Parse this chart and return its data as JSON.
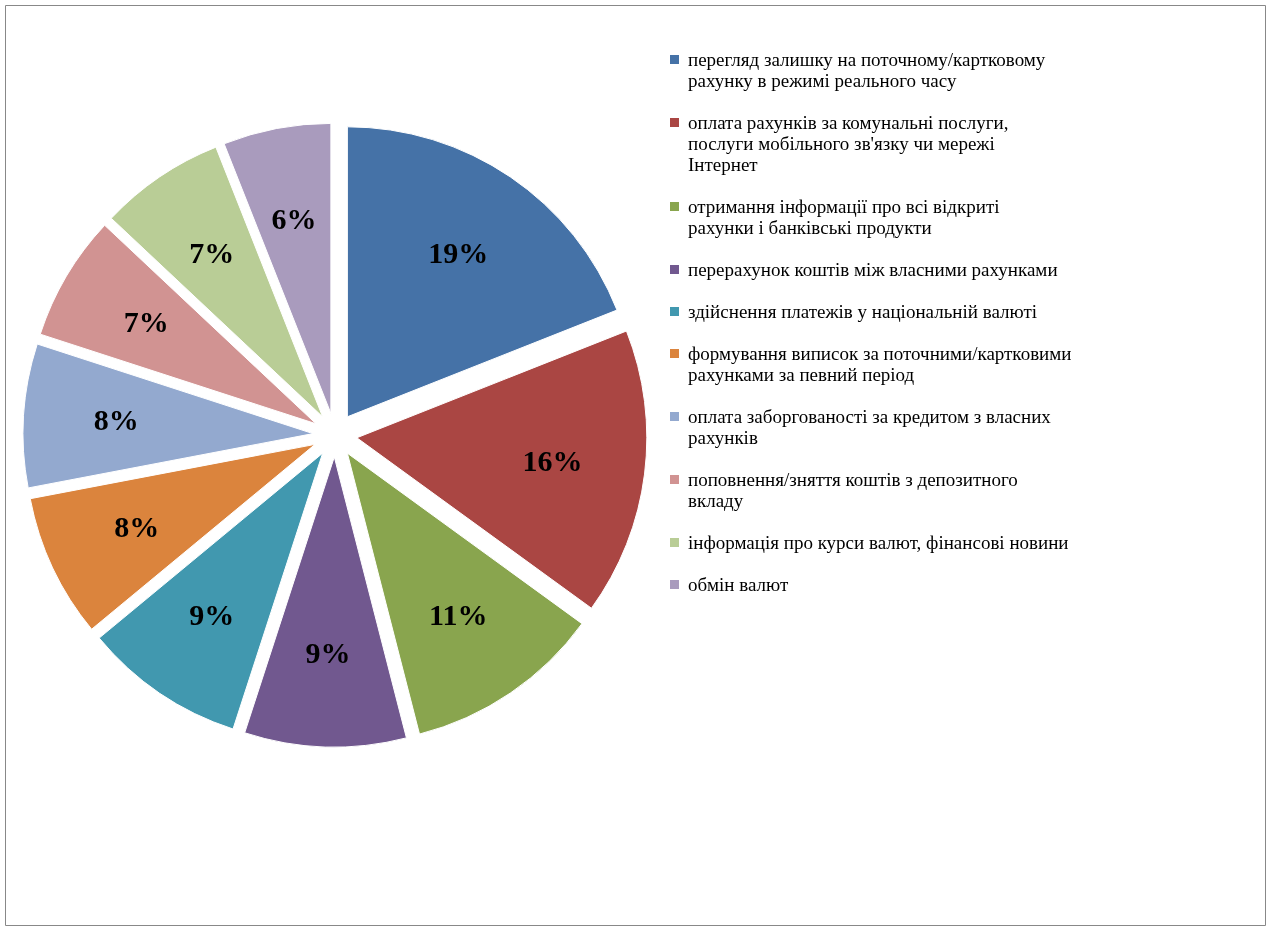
{
  "chart_data": {
    "type": "pie",
    "categories": [
      "перегляд залишку на поточному/картковому рахунку в режимі реального часу",
      "оплата рахунків за комунальні послуги, послуги мобільного зв'язку чи мережі Інтернет",
      "отримання інформації про всі відкриті рахунки і банківські продукти",
      "перерахунок коштів між власними рахунками",
      "здійснення платежів у національній валюті",
      "формування виписок за поточними/картковими рахунками за певний період",
      "оплата заборгованості за кредитом з власних рахунків",
      "поповнення/зняття коштів з депозитного вкладу",
      "інформація про курси валют, фінансові новини",
      "обмін валют"
    ],
    "values": [
      19,
      16,
      11,
      9,
      9,
      8,
      8,
      7,
      7,
      6
    ],
    "value_labels": [
      "19%",
      "16%",
      "11%",
      "9%",
      "9%",
      "8%",
      "8%",
      "7%",
      "7%",
      "6%"
    ],
    "colors": [
      "#4572a7",
      "#aa4643",
      "#89a54e",
      "#71588f",
      "#4198af",
      "#db843d",
      "#93a9cf",
      "#d19392",
      "#b9cd96",
      "#a99bbd"
    ],
    "legend": "right"
  }
}
